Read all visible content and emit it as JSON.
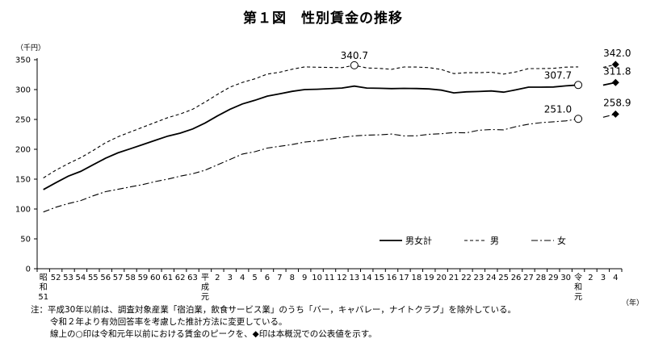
{
  "title": "第１図　性別賃金の推移",
  "unit_label": "（千円）",
  "x_unit_label": "（年）",
  "notes": [
    "注：平成30年以前は、調査対象産業「宿泊業，飲食サービス業」のうち「バー，キャバレー，ナイトクラブ」を除外している。",
    "令和２年より有効回答率を考慮した推計方法に変更している。",
    "線上の○印は令和元年以前における賃金のピークを、◆印は本概況での公表値を示す。"
  ],
  "chart_data": {
    "type": "line",
    "title": "第１図　性別賃金の推移",
    "ylabel": "（千円）",
    "xlabel": "（年）",
    "ylim": [
      0,
      350
    ],
    "yticks": [
      0,
      50,
      100,
      150,
      200,
      250,
      300,
      350
    ],
    "grid": false,
    "legend_position": "bottom-right",
    "x": [
      "昭和51",
      "52",
      "53",
      "54",
      "55",
      "56",
      "57",
      "58",
      "59",
      "60",
      "61",
      "62",
      "63",
      "平成元",
      "2",
      "3",
      "4",
      "5",
      "6",
      "7",
      "8",
      "9",
      "10",
      "11",
      "12",
      "13",
      "14",
      "15",
      "16",
      "17",
      "18",
      "19",
      "20",
      "21",
      "22",
      "23",
      "24",
      "25",
      "26",
      "27",
      "28",
      "29",
      "30",
      "令和元",
      "2",
      "3",
      "4"
    ],
    "x_tick_labels": [
      "昭\n和\n51",
      "52",
      "53",
      "54",
      "55",
      "56",
      "57",
      "58",
      "59",
      "60",
      "61",
      "62",
      "63",
      "平\n成\n元",
      "2",
      "3",
      "4",
      "5",
      "6",
      "7",
      "8",
      "9",
      "10",
      "11",
      "12",
      "13",
      "14",
      "15",
      "16",
      "17",
      "18",
      "19",
      "20",
      "21",
      "22",
      "23",
      "24",
      "25",
      "26",
      "27",
      "28",
      "29",
      "30",
      "令\n和\n元",
      "2",
      "3",
      "4"
    ],
    "series": [
      {
        "name": "男女計",
        "style": "solid",
        "values": [
          132.5,
          144.0,
          155.0,
          163.0,
          174.0,
          185.0,
          194.0,
          201.0,
          208.0,
          215.0,
          222.0,
          227.0,
          234.0,
          244.0,
          256.0,
          267.0,
          276.0,
          282.0,
          289.0,
          293.0,
          297.0,
          300.0,
          300.5,
          301.5,
          302.5,
          305.8,
          302.6,
          302.1,
          301.6,
          302.0,
          301.8,
          301.1,
          299.1,
          294.5,
          296.2,
          296.8,
          297.7,
          295.7,
          299.6,
          304.0,
          304.0,
          304.3,
          306.2,
          307.7,
          null,
          307.4,
          311.8
        ],
        "segment_break_after": "令和元"
      },
      {
        "name": "男",
        "style": "dashed",
        "values": [
          152.0,
          165.0,
          176.0,
          186.0,
          198.0,
          211.0,
          221.0,
          229.0,
          237.0,
          245.0,
          253.0,
          259.0,
          267.0,
          279.0,
          292.0,
          304.0,
          312.0,
          318.0,
          326.0,
          329.0,
          334.0,
          338.0,
          337.5,
          337.0,
          336.7,
          340.7,
          336.2,
          335.5,
          333.9,
          337.8,
          337.7,
          336.7,
          333.7,
          326.8,
          328.3,
          328.3,
          329.0,
          326.0,
          329.6,
          335.1,
          335.2,
          335.5,
          337.6,
          338.0,
          null,
          337.2,
          342.0
        ],
        "segment_break_after": "令和元"
      },
      {
        "name": "女",
        "style": "dashdot",
        "values": [
          95.0,
          103.0,
          109.0,
          114.0,
          122.0,
          129.0,
          133.0,
          137.0,
          141.0,
          146.0,
          150.0,
          155.0,
          159.0,
          165.0,
          174.0,
          183.0,
          192.0,
          196.0,
          202.0,
          205.0,
          208.0,
          212.0,
          214.0,
          217.0,
          220.0,
          222.5,
          223.6,
          224.2,
          225.6,
          222.5,
          222.6,
          225.2,
          226.1,
          228.0,
          227.6,
          231.9,
          233.1,
          232.6,
          238.0,
          242.0,
          244.6,
          246.1,
          247.5,
          251.0,
          null,
          253.6,
          258.9
        ],
        "segment_break_after": "令和元"
      }
    ],
    "annotations": [
      {
        "series": "男",
        "x": "平成13",
        "value": 340.7,
        "label": "340.7",
        "marker": "open-circle"
      },
      {
        "series": "男女計",
        "x": "令和元",
        "value": 307.7,
        "label": "307.7",
        "marker": "open-circle"
      },
      {
        "series": "女",
        "x": "令和元",
        "value": 251.0,
        "label": "251.0",
        "marker": "open-circle"
      },
      {
        "series": "男",
        "x": "令和4",
        "value": 342.0,
        "label": "342.0",
        "marker": "filled-diamond"
      },
      {
        "series": "男女計",
        "x": "令和4",
        "value": 311.8,
        "label": "311.8",
        "marker": "filled-diamond"
      },
      {
        "series": "女",
        "x": "令和4",
        "value": 258.9,
        "label": "258.9",
        "marker": "filled-diamond"
      }
    ]
  }
}
